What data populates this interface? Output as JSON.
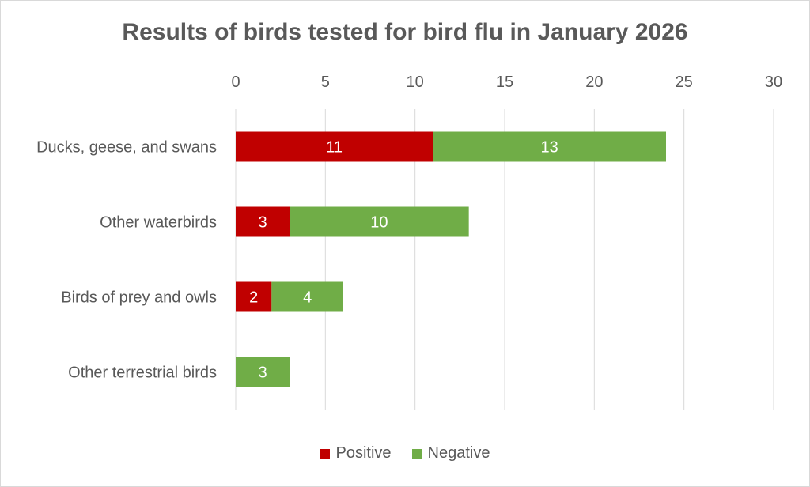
{
  "chart_data": {
    "type": "bar",
    "orientation": "horizontal",
    "stacked": true,
    "title": "Results of birds tested for bird flu in January 2026",
    "categories": [
      "Ducks, geese, and swans",
      "Other waterbirds",
      "Birds of prey and owls",
      "Other terrestrial birds"
    ],
    "series": [
      {
        "name": "Positive",
        "color": "#c00000",
        "values": [
          11,
          3,
          2,
          0
        ]
      },
      {
        "name": "Negative",
        "color": "#70ad47",
        "values": [
          13,
          10,
          4,
          3
        ]
      }
    ],
    "xlim": [
      0,
      30
    ],
    "xticks": [
      "0",
      "5",
      "10",
      "15",
      "20",
      "25",
      "30"
    ],
    "x_axis_position": "top",
    "grid": true,
    "data_labels": true,
    "legend_position": "bottom"
  }
}
